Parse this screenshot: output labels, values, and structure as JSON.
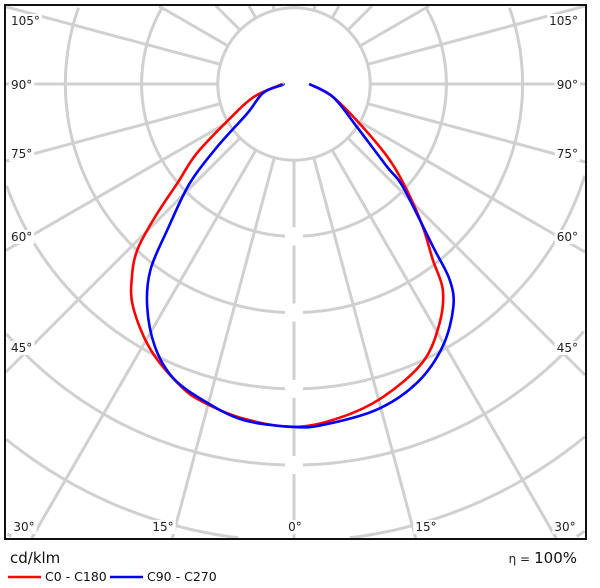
{
  "chart_data": {
    "type": "polar",
    "title": "",
    "angle_unit": "deg",
    "radial_tick_labels": [],
    "grid": true,
    "grid_angle_step": 15,
    "angle_labels": {
      "left": [
        "105°",
        "90°",
        "75°",
        "60°",
        "45°"
      ],
      "right": [
        "105°",
        "90°",
        "75°",
        "60°",
        "45°"
      ],
      "bottom": [
        "30°",
        "15°",
        "0°",
        "15°",
        "30°"
      ]
    },
    "unit_label": "cd/klm",
    "efficiency": {
      "symbol": "η =",
      "value": "100%"
    },
    "legend_placement": "bottom-left",
    "series": [
      {
        "name": "C0 - C180",
        "color": "#ff0000",
        "left": {
          "angles": [
            0,
            8.7,
            16,
            20.7,
            28.4,
            35.8,
            40,
            43.4,
            46.3,
            49.8,
            54.6,
            62,
            72,
            83,
            90
          ],
          "values": [
            4.5,
            4.44,
            4.34,
            4.23,
            3.96,
            3.61,
            3.31,
            2.99,
            2.52,
            1.99,
            1.56,
            0.94,
            0.56,
            0.22,
            0.15
          ]
        },
        "right": {
          "angles": [
            0,
            7.8,
            15.9,
            24.9,
            31.4,
            35.9,
            38.3,
            42,
            46.8,
            51.6,
            58,
            71.6,
            90
          ],
          "values": [
            4.5,
            4.42,
            4.27,
            4.02,
            3.67,
            3.33,
            2.94,
            2.53,
            2.03,
            1.6,
            1.06,
            0.54,
            0.2
          ]
        }
      },
      {
        "name": "C90 - C270",
        "color": "#0000ff",
        "left": {
          "angles": [
            0,
            8.6,
            16,
            22.4,
            27.9,
            33.4,
            37.7,
            41,
            46.4,
            50.7,
            58,
            74,
            85,
            90
          ],
          "values": [
            4.5,
            4.46,
            4.32,
            4.17,
            3.9,
            3.5,
            3.08,
            2.53,
            1.89,
            1.3,
            0.72,
            0.42,
            0.16,
            0.15
          ]
        },
        "right": {
          "angles": [
            0,
            4.9,
            14.3,
            22.4,
            29.5,
            35.5,
            38.5,
            40.5,
            46.6,
            48.3,
            55.7,
            71.6,
            90
          ],
          "values": [
            4.5,
            4.49,
            4.41,
            4.24,
            3.96,
            3.6,
            3.28,
            2.81,
            1.97,
            1.64,
            1.0,
            0.54,
            0.2
          ]
        }
      }
    ]
  }
}
